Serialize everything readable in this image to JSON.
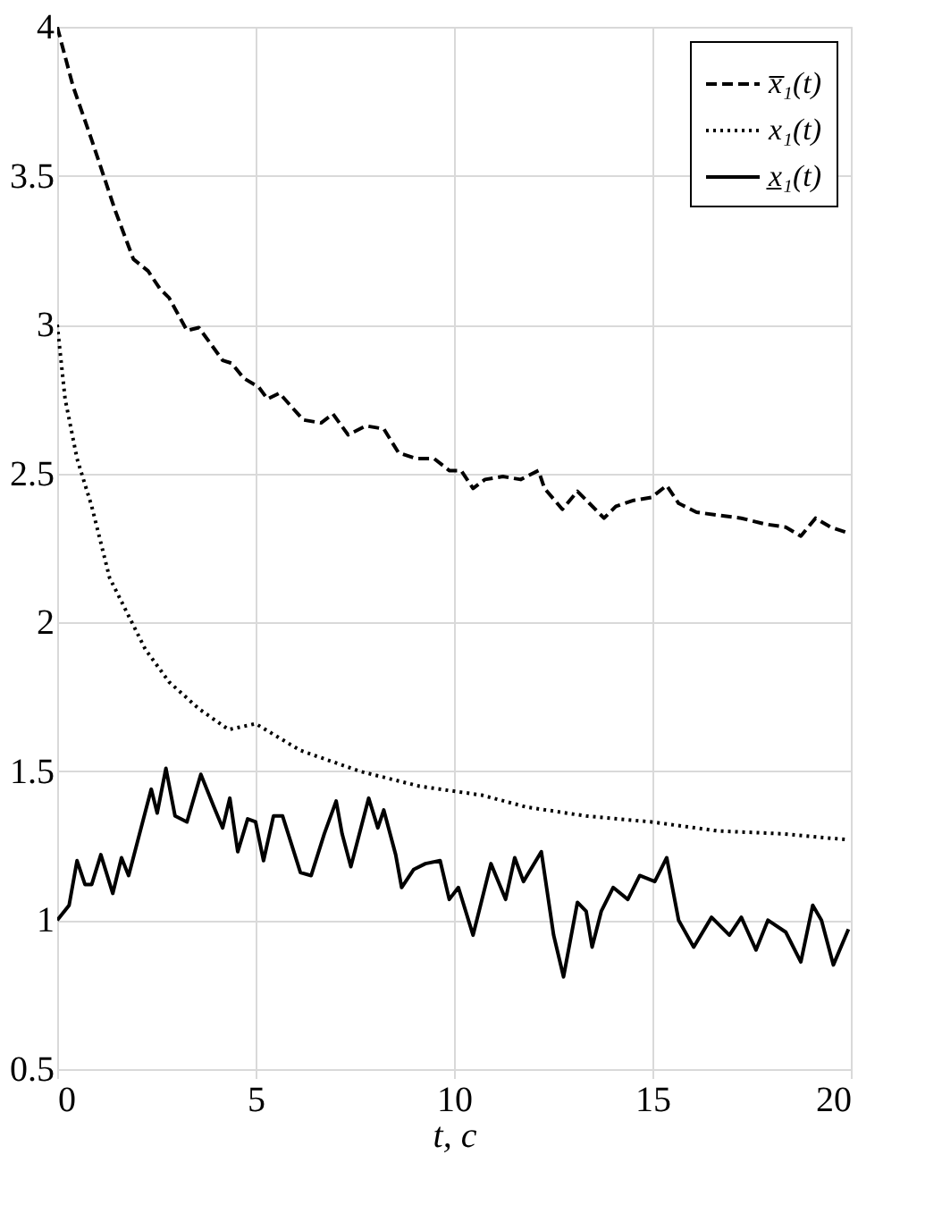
{
  "chart_data": {
    "type": "line",
    "xlabel": "t, c",
    "xlim": [
      0,
      20
    ],
    "xticks": [
      0,
      5,
      10,
      15,
      20
    ],
    "ylim": [
      0.5,
      4
    ],
    "yticks": [
      0.5,
      1,
      1.5,
      2,
      2.5,
      3,
      3.5,
      4
    ],
    "grid": true,
    "legend": "top right",
    "marker": "none",
    "series": [
      {
        "name": "x̅₁(t)",
        "color": "#000000",
        "line_style": "dashed",
        "x": [
          0,
          0.4,
          0.87,
          1.47,
          1.92,
          2.29,
          2.59,
          2.82,
          3.27,
          3.57,
          4.17,
          4.4,
          4.7,
          5.08,
          5.3,
          5.6,
          6.2,
          6.65,
          6.95,
          7.33,
          7.78,
          8.23,
          8.6,
          9.05,
          9.5,
          9.88,
          10.18,
          10.48,
          10.78,
          11.23,
          11.68,
          12.13,
          12.28,
          12.73,
          13.11,
          13.41,
          13.78,
          14.08,
          14.53,
          14.98,
          15.36,
          15.66,
          16.11,
          16.64,
          17.24,
          17.84,
          18.36,
          18.74,
          19.11,
          19.49,
          19.94
        ],
        "values": [
          4,
          3.8,
          3.62,
          3.38,
          3.22,
          3.18,
          3.12,
          3.09,
          2.98,
          2.99,
          2.88,
          2.87,
          2.82,
          2.79,
          2.75,
          2.77,
          2.68,
          2.67,
          2.7,
          2.63,
          2.66,
          2.65,
          2.57,
          2.55,
          2.55,
          2.51,
          2.51,
          2.45,
          2.48,
          2.49,
          2.48,
          2.51,
          2.45,
          2.38,
          2.44,
          2.4,
          2.35,
          2.39,
          2.41,
          2.42,
          2.46,
          2.4,
          2.37,
          2.36,
          2.35,
          2.33,
          2.32,
          2.29,
          2.35,
          2.32,
          2.3
        ]
      },
      {
        "name": "x₁(t)",
        "color": "#000000",
        "line_style": "dotted",
        "x": [
          0,
          0.2,
          0.5,
          0.87,
          1.32,
          1.77,
          2.22,
          2.82,
          3.57,
          4.32,
          5.0,
          6.13,
          7.63,
          9.13,
          10.7,
          11.83,
          13.33,
          14.98,
          16.64,
          18.29,
          19.94
        ],
        "values": [
          3,
          2.75,
          2.55,
          2.39,
          2.15,
          2.03,
          1.91,
          1.8,
          1.71,
          1.64,
          1.66,
          1.57,
          1.5,
          1.45,
          1.42,
          1.38,
          1.35,
          1.33,
          1.3,
          1.29,
          1.27
        ]
      },
      {
        "name": "x̲₁(t)",
        "color": "#000000",
        "line_style": "solid",
        "x": [
          0,
          0.3,
          0.5,
          0.7,
          0.87,
          1.1,
          1.4,
          1.62,
          1.8,
          2.37,
          2.52,
          2.74,
          2.97,
          3.27,
          3.62,
          3.95,
          4.17,
          4.35,
          4.55,
          4.8,
          5.0,
          5.2,
          5.45,
          5.68,
          6.13,
          6.4,
          6.73,
          7.03,
          7.18,
          7.4,
          7.85,
          8.08,
          8.23,
          8.53,
          8.68,
          8.98,
          9.28,
          9.65,
          9.88,
          10.11,
          10.48,
          10.78,
          10.93,
          11.3,
          11.53,
          11.75,
          12.2,
          12.51,
          12.76,
          13.11,
          13.33,
          13.48,
          13.71,
          14.01,
          14.38,
          14.68,
          15.06,
          15.36,
          15.66,
          16.04,
          16.49,
          16.94,
          17.24,
          17.61,
          17.91,
          18.36,
          18.74,
          19.04,
          19.26,
          19.56,
          19.94
        ],
        "values": [
          1.0,
          1.05,
          1.2,
          1.12,
          1.12,
          1.22,
          1.09,
          1.21,
          1.15,
          1.44,
          1.36,
          1.51,
          1.35,
          1.33,
          1.49,
          1.38,
          1.31,
          1.41,
          1.23,
          1.34,
          1.33,
          1.2,
          1.35,
          1.35,
          1.16,
          1.15,
          1.29,
          1.4,
          1.29,
          1.18,
          1.41,
          1.31,
          1.37,
          1.22,
          1.11,
          1.17,
          1.19,
          1.2,
          1.07,
          1.11,
          0.95,
          1.11,
          1.19,
          1.07,
          1.21,
          1.13,
          1.23,
          0.95,
          0.81,
          1.06,
          1.03,
          0.91,
          1.03,
          1.11,
          1.07,
          1.15,
          1.13,
          1.21,
          1.0,
          0.91,
          1.01,
          0.95,
          1.01,
          0.9,
          1.0,
          0.96,
          0.86,
          1.05,
          1.0,
          0.85,
          0.97
        ]
      }
    ]
  }
}
